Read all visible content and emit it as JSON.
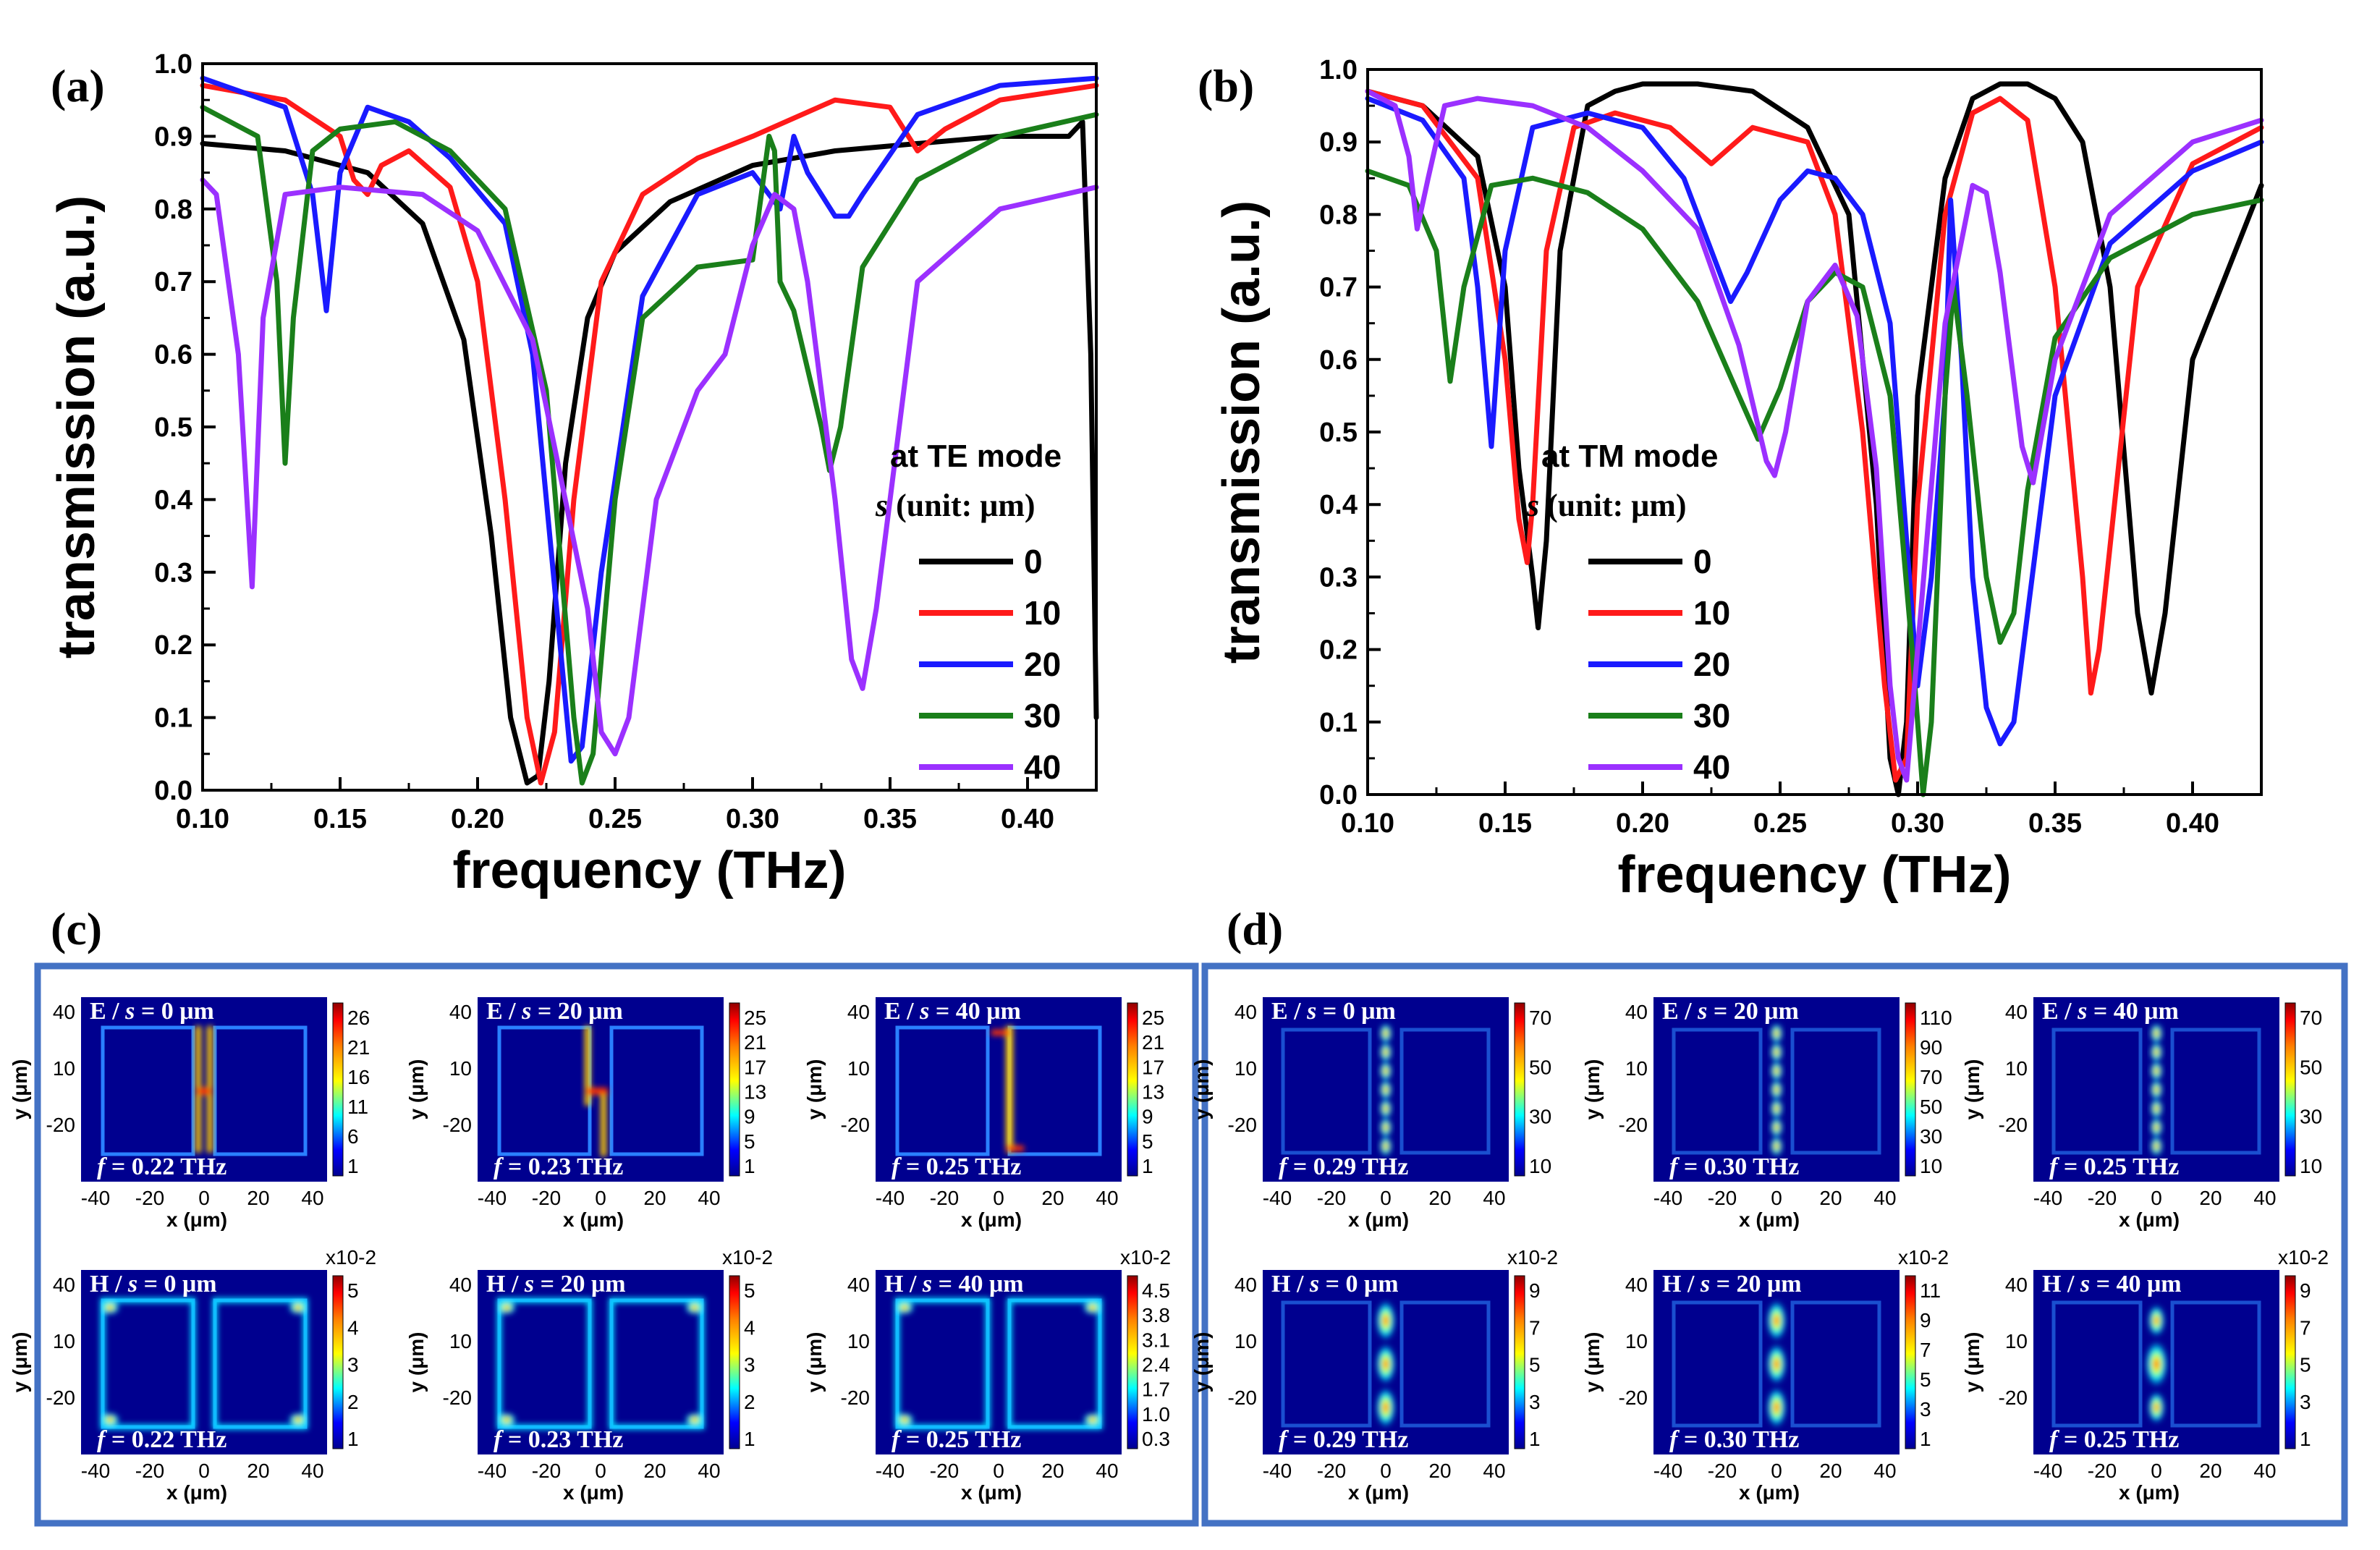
{
  "panel_labels": [
    "(a)",
    "(b)",
    "(c)",
    "(d)"
  ],
  "legend_values": [
    "0",
    "10",
    "20",
    "30",
    "40"
  ],
  "series_colors": [
    "#000000",
    "#ff1a1a",
    "#1a1aff",
    "#1a7f1a",
    "#9b30ff"
  ],
  "chart_data": [
    {
      "type": "line",
      "panel": "(a)",
      "title": "",
      "xlabel": "frequency (THz)",
      "ylabel": "transmission (a.u.)",
      "xlim": [
        0.1,
        0.425
      ],
      "ylim": [
        0.0,
        1.0
      ],
      "xticks": [
        "0.10",
        "0.15",
        "0.20",
        "0.25",
        "0.30",
        "0.35",
        "0.40"
      ],
      "yticks": [
        "0.0",
        "0.1",
        "0.2",
        "0.3",
        "0.4",
        "0.5",
        "0.6",
        "0.7",
        "0.8",
        "0.9",
        "1.0"
      ],
      "legend_title": [
        "at TE mode",
        "s (unit: μm)"
      ],
      "legend_title_symbol": "s",
      "legend_title_rest": "(unit: μm)",
      "legend_placement": "right",
      "series": [
        {
          "name": "0",
          "x": [
            0.1,
            0.13,
            0.16,
            0.18,
            0.195,
            0.205,
            0.212,
            0.218,
            0.222,
            0.226,
            0.232,
            0.24,
            0.25,
            0.27,
            0.3,
            0.33,
            0.36,
            0.39,
            0.415,
            0.42,
            0.423,
            0.425
          ],
          "y": [
            0.89,
            0.88,
            0.85,
            0.78,
            0.62,
            0.35,
            0.1,
            0.01,
            0.02,
            0.15,
            0.45,
            0.65,
            0.74,
            0.81,
            0.86,
            0.88,
            0.89,
            0.9,
            0.9,
            0.92,
            0.6,
            0.1
          ]
        },
        {
          "name": "10",
          "x": [
            0.1,
            0.13,
            0.15,
            0.155,
            0.16,
            0.165,
            0.175,
            0.19,
            0.2,
            0.21,
            0.218,
            0.223,
            0.228,
            0.235,
            0.245,
            0.26,
            0.28,
            0.3,
            0.33,
            0.35,
            0.36,
            0.37,
            0.39,
            0.425
          ],
          "y": [
            0.97,
            0.95,
            0.9,
            0.84,
            0.82,
            0.86,
            0.88,
            0.83,
            0.7,
            0.4,
            0.1,
            0.01,
            0.08,
            0.4,
            0.7,
            0.82,
            0.87,
            0.9,
            0.95,
            0.94,
            0.88,
            0.91,
            0.95,
            0.97
          ]
        },
        {
          "name": "20",
          "x": [
            0.1,
            0.13,
            0.14,
            0.145,
            0.15,
            0.16,
            0.175,
            0.19,
            0.21,
            0.22,
            0.23,
            0.234,
            0.238,
            0.245,
            0.26,
            0.28,
            0.3,
            0.31,
            0.315,
            0.32,
            0.33,
            0.335,
            0.34,
            0.36,
            0.39,
            0.425
          ],
          "y": [
            0.98,
            0.94,
            0.82,
            0.66,
            0.85,
            0.94,
            0.92,
            0.87,
            0.78,
            0.6,
            0.2,
            0.04,
            0.06,
            0.3,
            0.68,
            0.82,
            0.85,
            0.8,
            0.9,
            0.85,
            0.79,
            0.79,
            0.82,
            0.93,
            0.97,
            0.98
          ]
        },
        {
          "name": "30",
          "x": [
            0.1,
            0.12,
            0.127,
            0.13,
            0.133,
            0.14,
            0.15,
            0.17,
            0.19,
            0.21,
            0.225,
            0.235,
            0.238,
            0.242,
            0.25,
            0.26,
            0.28,
            0.3,
            0.306,
            0.308,
            0.31,
            0.315,
            0.325,
            0.328,
            0.332,
            0.34,
            0.36,
            0.39,
            0.425
          ],
          "y": [
            0.94,
            0.9,
            0.7,
            0.45,
            0.65,
            0.88,
            0.91,
            0.92,
            0.88,
            0.8,
            0.55,
            0.1,
            0.01,
            0.05,
            0.4,
            0.65,
            0.72,
            0.73,
            0.9,
            0.88,
            0.7,
            0.66,
            0.5,
            0.44,
            0.5,
            0.72,
            0.84,
            0.9,
            0.93
          ]
        },
        {
          "name": "40",
          "x": [
            0.1,
            0.105,
            0.113,
            0.118,
            0.122,
            0.13,
            0.15,
            0.18,
            0.2,
            0.22,
            0.24,
            0.245,
            0.25,
            0.255,
            0.265,
            0.28,
            0.29,
            0.3,
            0.308,
            0.315,
            0.32,
            0.33,
            0.336,
            0.34,
            0.345,
            0.36,
            0.39,
            0.425
          ],
          "y": [
            0.84,
            0.82,
            0.6,
            0.28,
            0.65,
            0.82,
            0.83,
            0.82,
            0.77,
            0.62,
            0.25,
            0.08,
            0.05,
            0.1,
            0.4,
            0.55,
            0.6,
            0.75,
            0.82,
            0.8,
            0.7,
            0.4,
            0.18,
            0.14,
            0.25,
            0.7,
            0.8,
            0.83
          ]
        }
      ]
    },
    {
      "type": "line",
      "panel": "(b)",
      "title": "",
      "xlabel": "frequency (THz)",
      "ylabel": "transmission (a.u.)",
      "xlim": [
        0.1,
        0.425
      ],
      "ylim": [
        0.0,
        1.0
      ],
      "xticks": [
        "0.10",
        "0.15",
        "0.20",
        "0.25",
        "0.30",
        "0.35",
        "0.40"
      ],
      "yticks": [
        "0.0",
        "0.1",
        "0.2",
        "0.3",
        "0.4",
        "0.5",
        "0.6",
        "0.7",
        "0.8",
        "0.9",
        "1.0"
      ],
      "legend_title": [
        "at TM mode",
        "s (unit: μm)"
      ],
      "legend_title_symbol": "s",
      "legend_title_rest": "(unit: μm)",
      "legend_placement": "center-left",
      "series": [
        {
          "name": "0",
          "x": [
            0.1,
            0.12,
            0.14,
            0.15,
            0.155,
            0.16,
            0.162,
            0.165,
            0.17,
            0.18,
            0.19,
            0.2,
            0.22,
            0.24,
            0.26,
            0.275,
            0.285,
            0.29,
            0.293,
            0.296,
            0.3,
            0.31,
            0.32,
            0.33,
            0.34,
            0.35,
            0.36,
            0.37,
            0.38,
            0.385,
            0.39,
            0.4,
            0.425
          ],
          "y": [
            0.97,
            0.95,
            0.88,
            0.7,
            0.45,
            0.3,
            0.23,
            0.35,
            0.75,
            0.95,
            0.97,
            0.98,
            0.98,
            0.97,
            0.92,
            0.8,
            0.4,
            0.05,
            0.0,
            0.1,
            0.55,
            0.85,
            0.96,
            0.98,
            0.98,
            0.96,
            0.9,
            0.7,
            0.25,
            0.14,
            0.25,
            0.6,
            0.84
          ]
        },
        {
          "name": "10",
          "x": [
            0.1,
            0.12,
            0.14,
            0.15,
            0.155,
            0.158,
            0.16,
            0.165,
            0.175,
            0.19,
            0.21,
            0.225,
            0.24,
            0.26,
            0.27,
            0.28,
            0.288,
            0.292,
            0.296,
            0.3,
            0.31,
            0.32,
            0.33,
            0.34,
            0.35,
            0.36,
            0.363,
            0.366,
            0.38,
            0.4,
            0.425
          ],
          "y": [
            0.97,
            0.95,
            0.85,
            0.6,
            0.38,
            0.32,
            0.4,
            0.75,
            0.92,
            0.94,
            0.92,
            0.87,
            0.92,
            0.9,
            0.8,
            0.5,
            0.15,
            0.02,
            0.05,
            0.4,
            0.8,
            0.94,
            0.96,
            0.93,
            0.7,
            0.3,
            0.14,
            0.2,
            0.7,
            0.87,
            0.92
          ]
        },
        {
          "name": "20",
          "x": [
            0.1,
            0.12,
            0.135,
            0.14,
            0.145,
            0.15,
            0.16,
            0.18,
            0.2,
            0.215,
            0.225,
            0.232,
            0.238,
            0.25,
            0.26,
            0.27,
            0.28,
            0.29,
            0.295,
            0.3,
            0.305,
            0.31,
            0.312,
            0.316,
            0.32,
            0.325,
            0.33,
            0.335,
            0.34,
            0.35,
            0.37,
            0.4,
            0.425
          ],
          "y": [
            0.96,
            0.93,
            0.85,
            0.7,
            0.48,
            0.75,
            0.92,
            0.94,
            0.92,
            0.85,
            0.75,
            0.68,
            0.72,
            0.82,
            0.86,
            0.85,
            0.8,
            0.65,
            0.4,
            0.15,
            0.3,
            0.55,
            0.82,
            0.6,
            0.3,
            0.12,
            0.07,
            0.1,
            0.25,
            0.55,
            0.76,
            0.86,
            0.9
          ]
        },
        {
          "name": "30",
          "x": [
            0.1,
            0.115,
            0.125,
            0.13,
            0.135,
            0.145,
            0.16,
            0.18,
            0.2,
            0.22,
            0.235,
            0.242,
            0.25,
            0.26,
            0.27,
            0.28,
            0.29,
            0.298,
            0.302,
            0.305,
            0.31,
            0.313,
            0.318,
            0.325,
            0.33,
            0.335,
            0.34,
            0.35,
            0.37,
            0.4,
            0.425
          ],
          "y": [
            0.86,
            0.84,
            0.75,
            0.57,
            0.7,
            0.84,
            0.85,
            0.83,
            0.78,
            0.68,
            0.55,
            0.49,
            0.56,
            0.68,
            0.72,
            0.7,
            0.55,
            0.2,
            0.0,
            0.1,
            0.55,
            0.7,
            0.55,
            0.3,
            0.21,
            0.25,
            0.42,
            0.63,
            0.74,
            0.8,
            0.82
          ]
        },
        {
          "name": "40",
          "x": [
            0.1,
            0.11,
            0.115,
            0.118,
            0.122,
            0.128,
            0.14,
            0.16,
            0.18,
            0.2,
            0.22,
            0.235,
            0.245,
            0.248,
            0.252,
            0.26,
            0.27,
            0.278,
            0.285,
            0.29,
            0.293,
            0.296,
            0.3,
            0.31,
            0.32,
            0.325,
            0.33,
            0.338,
            0.342,
            0.35,
            0.37,
            0.4,
            0.425
          ],
          "y": [
            0.97,
            0.95,
            0.88,
            0.78,
            0.85,
            0.95,
            0.96,
            0.95,
            0.92,
            0.86,
            0.78,
            0.62,
            0.46,
            0.44,
            0.5,
            0.68,
            0.73,
            0.66,
            0.45,
            0.15,
            0.05,
            0.02,
            0.2,
            0.65,
            0.84,
            0.83,
            0.72,
            0.48,
            0.43,
            0.6,
            0.8,
            0.9,
            0.93
          ]
        }
      ]
    }
  ],
  "field_maps": {
    "c": {
      "panels": [
        {
          "label_field": "E",
          "label_s": "0",
          "freq": "0.22",
          "colorbar": [
            "26",
            "21",
            "16",
            "11",
            "6",
            "1"
          ],
          "exponent": "",
          "pattern": "E0"
        },
        {
          "label_field": "E",
          "label_s": "20",
          "freq": "0.23",
          "colorbar": [
            "25",
            "21",
            "17",
            "13",
            "9",
            "5",
            "1"
          ],
          "exponent": "",
          "pattern": "E20"
        },
        {
          "label_field": "E",
          "label_s": "40",
          "freq": "0.25",
          "colorbar": [
            "25",
            "21",
            "17",
            "13",
            "9",
            "5",
            "1"
          ],
          "exponent": "",
          "pattern": "E40"
        },
        {
          "label_field": "H",
          "label_s": "0",
          "freq": "0.22",
          "colorbar": [
            "5",
            "4",
            "3",
            "2",
            "1"
          ],
          "exponent": "x10-2",
          "pattern": "H0"
        },
        {
          "label_field": "H",
          "label_s": "20",
          "freq": "0.23",
          "colorbar": [
            "5",
            "4",
            "3",
            "2",
            "1"
          ],
          "exponent": "x10-2",
          "pattern": "H20"
        },
        {
          "label_field": "H",
          "label_s": "40",
          "freq": "0.25",
          "colorbar": [
            "4.5",
            "3.8",
            "3.1",
            "2.4",
            "1.7",
            "1.0",
            "0.3"
          ],
          "exponent": "x10-2",
          "pattern": "H40"
        }
      ]
    },
    "d": {
      "panels": [
        {
          "label_field": "E",
          "label_s": "0",
          "freq": "0.29",
          "colorbar": [
            "70",
            "50",
            "30",
            "10"
          ],
          "exponent": "",
          "pattern": "TE"
        },
        {
          "label_field": "E",
          "label_s": "20",
          "freq": "0.30",
          "colorbar": [
            "110",
            "90",
            "70",
            "50",
            "30",
            "10"
          ],
          "exponent": "",
          "pattern": "TE"
        },
        {
          "label_field": "E",
          "label_s": "40",
          "freq": "0.25",
          "colorbar": [
            "70",
            "50",
            "30",
            "10"
          ],
          "exponent": "",
          "pattern": "TE"
        },
        {
          "label_field": "H",
          "label_s": "0",
          "freq": "0.29",
          "colorbar": [
            "9",
            "7",
            "5",
            "3",
            "1"
          ],
          "exponent": "x10-2",
          "pattern": "TH"
        },
        {
          "label_field": "H",
          "label_s": "20",
          "freq": "0.30",
          "colorbar": [
            "11",
            "9",
            "7",
            "5",
            "3",
            "1"
          ],
          "exponent": "x10-2",
          "pattern": "TH"
        },
        {
          "label_field": "H",
          "label_s": "40",
          "freq": "0.25",
          "colorbar": [
            "9",
            "7",
            "5",
            "3",
            "1"
          ],
          "exponent": "x10-2",
          "pattern": "TH2"
        }
      ]
    },
    "label_separator": " / ",
    "s_symbol": "s",
    "unit_um": "μm",
    "freq_symbol": "f",
    "freq_unit": "THz",
    "x_ticks": [
      "-40",
      "-20",
      "0",
      "20",
      "40"
    ],
    "y_ticks": [
      "40",
      "10",
      "-20"
    ],
    "x_label": "x (μm)",
    "y_label": "y (μm)"
  }
}
